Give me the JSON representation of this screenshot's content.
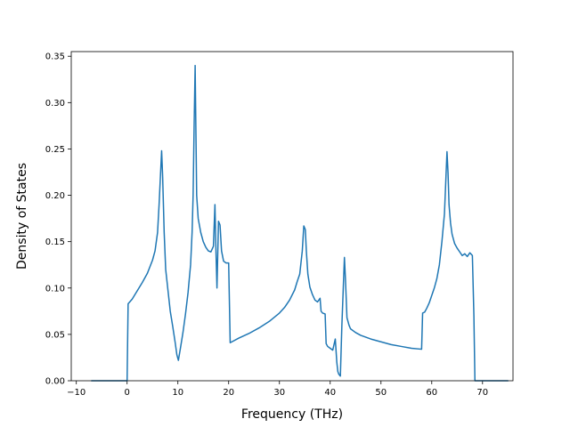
{
  "chart_data": {
    "type": "line",
    "title": "",
    "xlabel": "Frequency (THz)",
    "ylabel": "Density of States",
    "xlim": [
      -11,
      76
    ],
    "ylim": [
      0,
      0.355
    ],
    "xticks": [
      -10,
      0,
      10,
      20,
      30,
      40,
      50,
      60,
      70
    ],
    "yticks": [
      0.0,
      0.05,
      0.1,
      0.15,
      0.2,
      0.25,
      0.3,
      0.35
    ],
    "grid": false,
    "legend": "none",
    "series": [
      {
        "color": "#1f77b4",
        "x": [
          -7,
          -3,
          0,
          0.2,
          1,
          2,
          3,
          4,
          5,
          5.5,
          6,
          6.3,
          6.6,
          6.8,
          7,
          7.3,
          7.6,
          8,
          8.5,
          9,
          9.5,
          9.8,
          10.1,
          10.5,
          11,
          11.5,
          12,
          12.5,
          12.8,
          13,
          13.2,
          13.4,
          13.7,
          14,
          14.5,
          15,
          15.5,
          16,
          16.5,
          17,
          17.3,
          17.5,
          17.7,
          18,
          18.3,
          18.6,
          19,
          19.5,
          20,
          20.3,
          22,
          24,
          26,
          28,
          30,
          31,
          32,
          33,
          33.5,
          34,
          34.5,
          34.8,
          35.1,
          35.3,
          35.6,
          36,
          36.5,
          37,
          37.5,
          38,
          38.2,
          38.5,
          39,
          39.2,
          39.5,
          40,
          40.5,
          41,
          41.3,
          41.5,
          41.7,
          42,
          42.3,
          42.8,
          43,
          43.3,
          43.7,
          44,
          45,
          46,
          48,
          50,
          52,
          54,
          56,
          58,
          58.2,
          58.6,
          59,
          59.5,
          60,
          60.5,
          61,
          61.5,
          62,
          62.5,
          62.8,
          63,
          63.2,
          63.4,
          63.7,
          64,
          64.5,
          65,
          65.5,
          66,
          66.5,
          67,
          67.5,
          68,
          68.3,
          68.5,
          69,
          72,
          75
        ],
        "y": [
          0,
          0,
          0,
          0.083,
          0.088,
          0.097,
          0.106,
          0.116,
          0.13,
          0.14,
          0.16,
          0.19,
          0.225,
          0.248,
          0.22,
          0.16,
          0.12,
          0.1,
          0.075,
          0.058,
          0.04,
          0.028,
          0.022,
          0.035,
          0.052,
          0.072,
          0.095,
          0.125,
          0.16,
          0.2,
          0.275,
          0.34,
          0.2,
          0.175,
          0.16,
          0.15,
          0.144,
          0.14,
          0.139,
          0.145,
          0.19,
          0.14,
          0.1,
          0.172,
          0.168,
          0.14,
          0.129,
          0.127,
          0.127,
          0.041,
          0.046,
          0.051,
          0.057,
          0.064,
          0.073,
          0.079,
          0.087,
          0.098,
          0.107,
          0.115,
          0.14,
          0.167,
          0.163,
          0.14,
          0.115,
          0.101,
          0.093,
          0.087,
          0.085,
          0.089,
          0.075,
          0.073,
          0.072,
          0.04,
          0.037,
          0.035,
          0.033,
          0.045,
          0.02,
          0.01,
          0.007,
          0.005,
          0.06,
          0.133,
          0.11,
          0.068,
          0.06,
          0.056,
          0.052,
          0.049,
          0.045,
          0.042,
          0.039,
          0.037,
          0.035,
          0.034,
          0.073,
          0.074,
          0.078,
          0.084,
          0.092,
          0.1,
          0.11,
          0.125,
          0.15,
          0.18,
          0.22,
          0.247,
          0.225,
          0.19,
          0.17,
          0.158,
          0.148,
          0.143,
          0.139,
          0.135,
          0.137,
          0.134,
          0.138,
          0.135,
          0.07,
          0,
          0,
          0,
          0
        ]
      }
    ]
  }
}
